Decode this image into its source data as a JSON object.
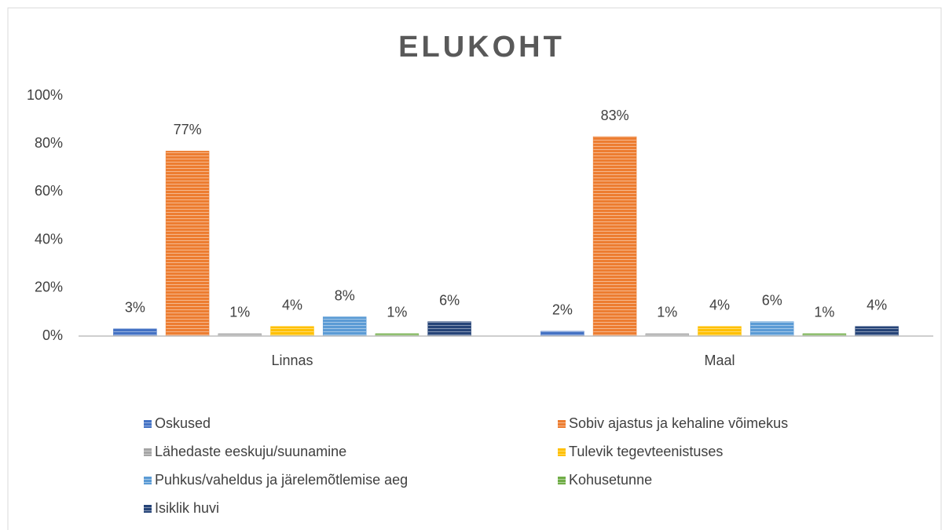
{
  "chart_data": {
    "type": "bar",
    "title": "ELUKOHT",
    "categories": [
      "Linnas",
      "Maal"
    ],
    "series": [
      {
        "name": "Oskused",
        "color": "#4472c4",
        "values": [
          3,
          2
        ],
        "value_labels": [
          "3%",
          "2%"
        ]
      },
      {
        "name": "Sobiv ajastus ja kehaline võimekus",
        "color": "#ed7d31",
        "values": [
          77,
          83
        ],
        "value_labels": [
          "77%",
          "83%"
        ]
      },
      {
        "name": "Lähedaste eeskuju/suunamine",
        "color": "#a5a5a5",
        "values": [
          1,
          1
        ],
        "value_labels": [
          "1%",
          "1%"
        ]
      },
      {
        "name": "Tulevik tegevteenistuses",
        "color": "#ffc000",
        "values": [
          4,
          4
        ],
        "value_labels": [
          "4%",
          "4%"
        ]
      },
      {
        "name": "Puhkus/vaheldus ja järelemõtlemise aeg",
        "color": "#5b9bd5",
        "values": [
          8,
          6
        ],
        "value_labels": [
          "8%",
          "6%"
        ]
      },
      {
        "name": "Kohusetunne",
        "color": "#70ad47",
        "values": [
          1,
          1
        ],
        "value_labels": [
          "1%",
          "1%"
        ]
      },
      {
        "name": "Isiklik huvi",
        "color": "#264478",
        "values": [
          6,
          4
        ],
        "value_labels": [
          "6%",
          "4%"
        ]
      }
    ],
    "ylim": [
      0,
      100
    ],
    "yticks": [
      {
        "value": 0,
        "label": "0%"
      },
      {
        "value": 20,
        "label": "20%"
      },
      {
        "value": 40,
        "label": "40%"
      },
      {
        "value": 60,
        "label": "60%"
      },
      {
        "value": 80,
        "label": "80%"
      },
      {
        "value": 100,
        "label": "100%"
      }
    ],
    "grid": false,
    "legend": "bottom"
  }
}
